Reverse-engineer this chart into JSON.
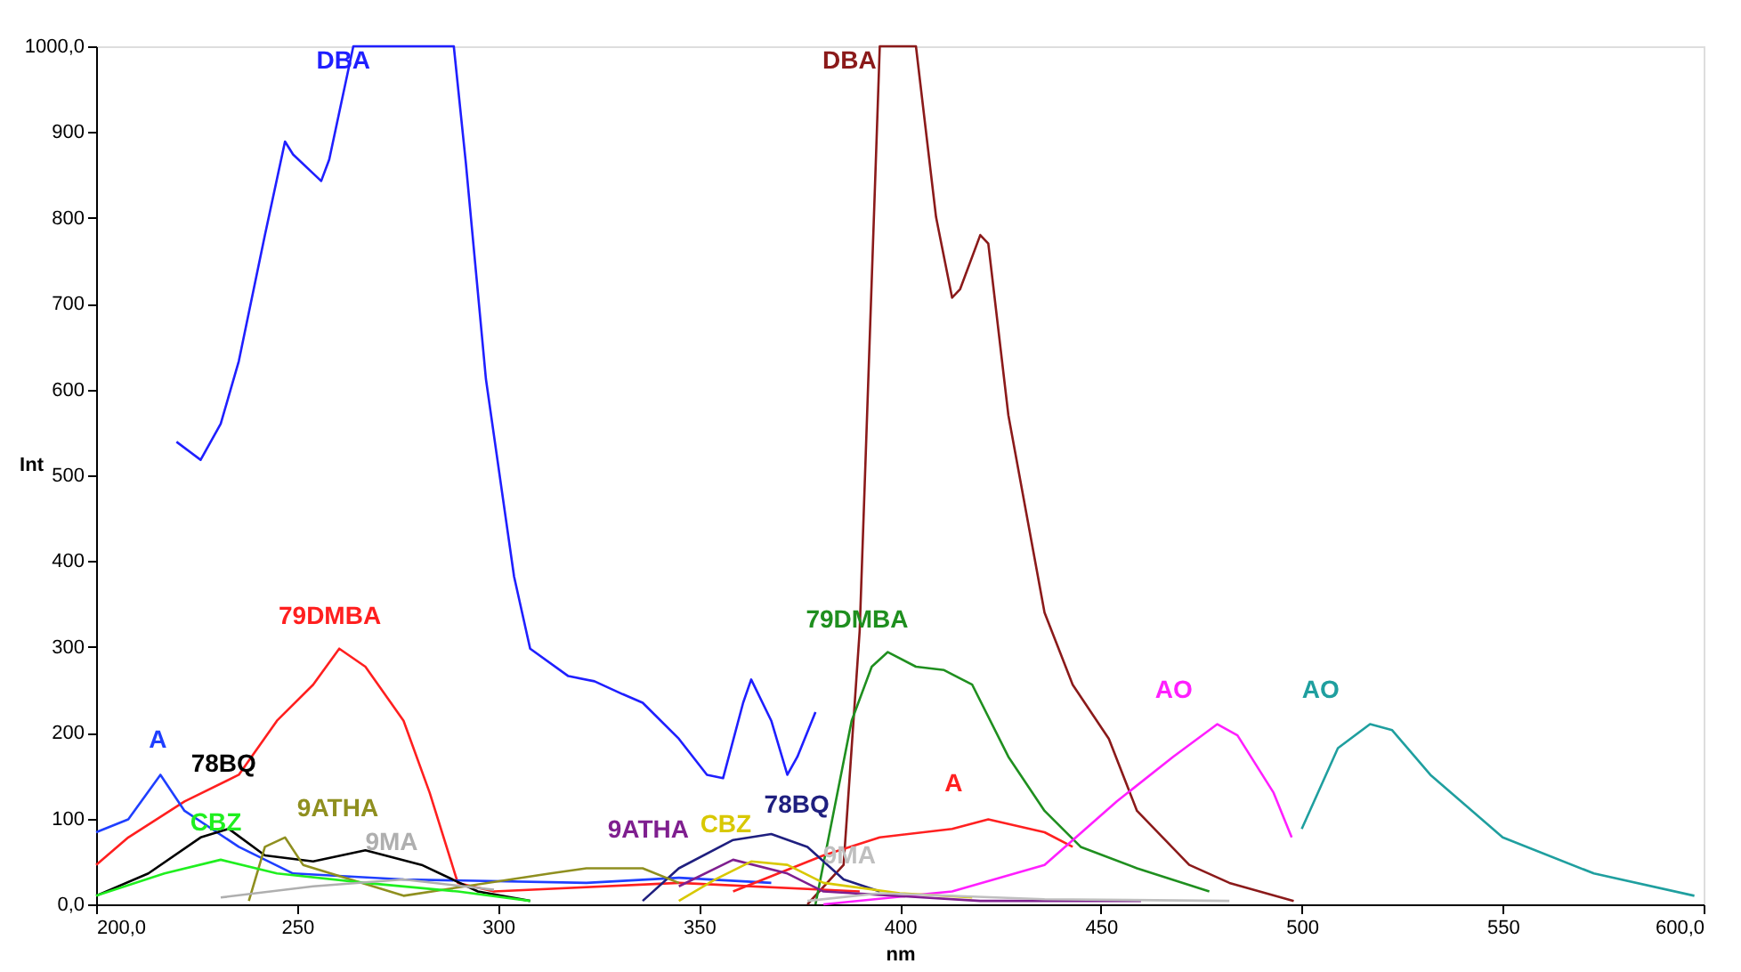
{
  "chart_data": {
    "type": "line",
    "xlabel": "nm",
    "ylabel": "Int",
    "xlim": [
      200,
      600
    ],
    "ylim": [
      0,
      1000
    ],
    "xticks": [
      {
        "value": 200,
        "label": "200,0"
      },
      250,
      300,
      350,
      400,
      450,
      500,
      550,
      {
        "value": 600,
        "label": "600,0"
      }
    ],
    "yticks": [
      {
        "value": 0,
        "label": "0,0"
      },
      100,
      200,
      300,
      400,
      500,
      600,
      700,
      800,
      900,
      {
        "value": 1000,
        "label": "1000,0"
      }
    ],
    "grid": false,
    "legend": false,
    "marker": "none",
    "line_style": "solid",
    "series": [
      {
        "name": "DBA",
        "color": "#1f1fff",
        "x": [
          220,
          226,
          231,
          235.5,
          242,
          247,
          249,
          256,
          258,
          264,
          289,
          292,
          297,
          304,
          308,
          317.5,
          324,
          331,
          336,
          345,
          352,
          356,
          361,
          363,
          368,
          372,
          374.5,
          379
        ],
        "values": [
          539,
          518,
          560,
          633,
          780,
          889,
          874,
          843,
          868,
          1000,
          1000,
          864,
          612,
          382,
          298,
          266,
          260,
          245,
          235,
          193,
          151,
          147,
          235,
          262,
          214,
          151,
          172,
          224
        ]
      },
      {
        "name": "DBA",
        "color": "#8b1a1a",
        "x": [
          377,
          386,
          390,
          395,
          404,
          409,
          413,
          415,
          420,
          422,
          427,
          436,
          443,
          452,
          459,
          472,
          482,
          498
        ],
        "values": [
          0,
          46,
          319,
          1000,
          1000,
          801,
          707,
          717,
          780,
          770,
          570,
          340,
          256,
          193,
          109,
          46,
          25,
          4
        ]
      },
      {
        "name": "79DMBA",
        "color": "#ff1f1f",
        "x": [
          200,
          208,
          222,
          235.5,
          245,
          254,
          260.5,
          267,
          276.5,
          283,
          290,
          299,
          345,
          390
        ],
        "values": [
          46,
          78,
          120,
          151,
          214,
          256,
          298,
          277,
          214,
          130,
          25,
          15,
          25,
          15
        ]
      },
      {
        "name": "79DMBA",
        "color": "#1f8f1f",
        "x": [
          379,
          388,
          393,
          397,
          404,
          411,
          418,
          427,
          436,
          445,
          459,
          477
        ],
        "values": [
          0,
          214,
          277,
          294,
          277,
          273,
          256,
          172,
          109,
          67,
          42,
          15
        ]
      },
      {
        "name": "A",
        "color": "#1f3fff",
        "x": [
          200,
          208,
          216,
          222,
          235.5,
          249,
          276.5,
          322,
          345,
          368
        ],
        "values": [
          84,
          99,
          151,
          109,
          67,
          36,
          29,
          25,
          31,
          25
        ]
      },
      {
        "name": "A",
        "color": "#ff2020",
        "x": [
          358.5,
          381,
          395,
          413,
          422,
          436,
          443
        ],
        "values": [
          15,
          57,
          78,
          88,
          99,
          84,
          67
        ]
      },
      {
        "name": "AO",
        "color": "#ff1fff",
        "x": [
          381,
          413,
          436,
          454,
          468,
          479,
          484,
          493,
          497.5
        ],
        "values": [
          0,
          15,
          46,
          120,
          172,
          210,
          197,
          130,
          78
        ]
      },
      {
        "name": "AO",
        "color": "#1f9f9f",
        "x": [
          500,
          509,
          517,
          522.5,
          532,
          550,
          572.7,
          597.7
        ],
        "values": [
          88,
          182,
          210,
          203,
          151,
          78,
          36,
          10
        ]
      },
      {
        "name": "78BQ",
        "color": "#000000",
        "x": [
          200,
          213,
          226,
          233,
          242,
          254,
          267,
          281,
          295,
          308
        ],
        "values": [
          10,
          36,
          78,
          88,
          57,
          50,
          63,
          46,
          15,
          4
        ]
      },
      {
        "name": "78BQ",
        "color": "#1f1f7f",
        "x": [
          336,
          345,
          358.5,
          368,
          377,
          386,
          395
        ],
        "values": [
          4,
          42,
          75,
          82,
          67,
          29,
          15
        ]
      },
      {
        "name": "9ATHA",
        "color": "#8f8f1f",
        "x": [
          238,
          242,
          247,
          251.5,
          276.5,
          313,
          322,
          336,
          345
        ],
        "values": [
          4,
          67,
          78,
          46,
          10,
          36,
          42,
          42,
          25
        ]
      },
      {
        "name": "9ATHA",
        "color": "#7f1f8f",
        "x": [
          345,
          358.5,
          372,
          381,
          420,
          460
        ],
        "values": [
          21,
          52,
          36,
          15,
          4,
          4
        ]
      },
      {
        "name": "CBZ",
        "color": "#1fef1f",
        "x": [
          200,
          217,
          231,
          245,
          267,
          290,
          308
        ],
        "values": [
          10,
          36,
          52,
          36,
          25,
          15,
          4
        ]
      },
      {
        "name": "CBZ",
        "color": "#d8c800",
        "x": [
          345,
          354,
          363,
          372,
          381,
          400,
          418
        ],
        "values": [
          4,
          29,
          50,
          46,
          25,
          13,
          8
        ]
      },
      {
        "name": "9MA",
        "color": "#afafaf",
        "x": [
          231,
          254,
          276.5,
          299
        ],
        "values": [
          8,
          21,
          29,
          17
        ]
      },
      {
        "name": "9MA",
        "color": "#bfbfbf",
        "x": [
          377,
          395,
          436,
          482
        ],
        "values": [
          4,
          13,
          6,
          4
        ]
      }
    ]
  }
}
